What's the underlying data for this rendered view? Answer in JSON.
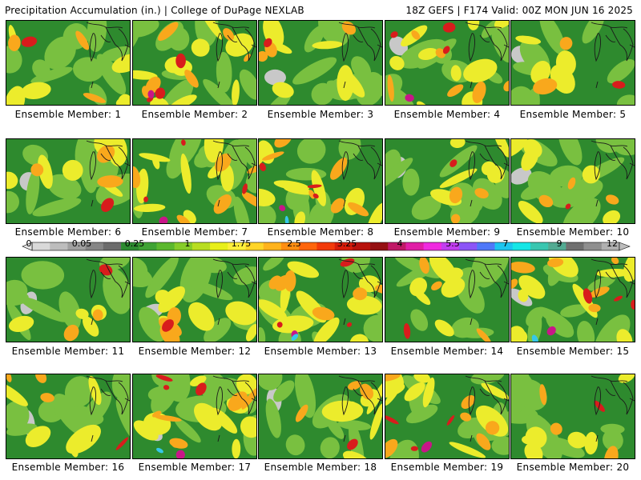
{
  "header": {
    "title_left": "Precipitation Accumulation (in.) | College of DuPage NEXLAB",
    "title_right": "18Z GEFS | F174 Valid: 00Z MON JUN 16 2025"
  },
  "colorbar": {
    "tick_labels": [
      "0",
      "0.05",
      "0.25",
      "1",
      "1.75",
      "2.5",
      "3.25",
      "4",
      "5.5",
      "7",
      "9",
      "12"
    ],
    "colors": [
      "#d9d9d9",
      "#bdbdbd",
      "#a0a0a0",
      "#868686",
      "#6c6c6c",
      "#2c8b30",
      "#3fa334",
      "#5bb82e",
      "#86cc29",
      "#b8dd21",
      "#e8ef1a",
      "#ffef3a",
      "#ffd528",
      "#ffb31c",
      "#ff8e12",
      "#ff650c",
      "#f23a0a",
      "#d81c0a",
      "#b8120c",
      "#951012",
      "#c01866",
      "#e01ea6",
      "#f02ae0",
      "#c23df0",
      "#8c55f7",
      "#4f78f9",
      "#1cc5ef",
      "#16e6e6",
      "#3ac6b0",
      "#52aa92",
      "#6f6f6f",
      "#8f8f8f",
      "#b0b0b0"
    ]
  },
  "colors": {
    "gray": "#c8c8c8",
    "green_dark": "#2e8a2e",
    "green_light": "#79c040",
    "yellow": "#ecec2c",
    "orange": "#f9a81c",
    "red": "#d81c1c",
    "magenta": "#c81688",
    "cyan": "#36c8e8",
    "outline": "#1a1a1a"
  },
  "panels": [
    {
      "label": "Ensemble Member: 1",
      "theme": "mid"
    },
    {
      "label": "Ensemble Member: 2",
      "theme": "wet"
    },
    {
      "label": "Ensemble Member: 3",
      "theme": "mid"
    },
    {
      "label": "Ensemble Member: 4",
      "theme": "wet"
    },
    {
      "label": "Ensemble Member: 5",
      "theme": "dry"
    },
    {
      "label": "Ensemble Member: 6",
      "theme": "mid"
    },
    {
      "label": "Ensemble Member: 7",
      "theme": "wet"
    },
    {
      "label": "Ensemble Member: 8",
      "theme": "wet"
    },
    {
      "label": "Ensemble Member: 9",
      "theme": "mid"
    },
    {
      "label": "Ensemble Member: 10",
      "theme": "mid"
    },
    {
      "label": "Ensemble Member: 11",
      "theme": "dry"
    },
    {
      "label": "Ensemble Member: 12",
      "theme": "mid"
    },
    {
      "label": "Ensemble Member: 13",
      "theme": "wet"
    },
    {
      "label": "Ensemble Member: 14",
      "theme": "mid"
    },
    {
      "label": "Ensemble Member: 15",
      "theme": "wet"
    },
    {
      "label": "Ensemble Member: 16",
      "theme": "mid"
    },
    {
      "label": "Ensemble Member: 17",
      "theme": "wet"
    },
    {
      "label": "Ensemble Member: 18",
      "theme": "mid"
    },
    {
      "label": "Ensemble Member: 19",
      "theme": "wet"
    },
    {
      "label": "Ensemble Member: 20",
      "theme": "mid"
    }
  ]
}
